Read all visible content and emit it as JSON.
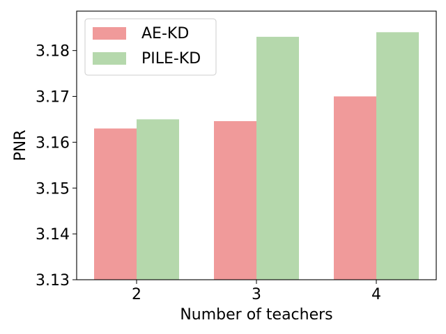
{
  "chart_data": {
    "type": "bar",
    "categories": [
      "2",
      "3",
      "4"
    ],
    "series": [
      {
        "name": "AE-KD",
        "values": [
          3.163,
          3.1646,
          3.17
        ],
        "color": "#f09a9a"
      },
      {
        "name": "PILE-KD",
        "values": [
          3.165,
          3.183,
          3.184
        ],
        "color": "#b5d8ac"
      }
    ],
    "xlabel": "Number of teachers",
    "ylabel": "PNR",
    "ylim": [
      3.13,
      3.1886
    ],
    "yticks": [
      "3.13",
      "3.14",
      "3.15",
      "3.16",
      "3.17",
      "3.18"
    ],
    "grid": false,
    "legend_position": "top-left"
  }
}
